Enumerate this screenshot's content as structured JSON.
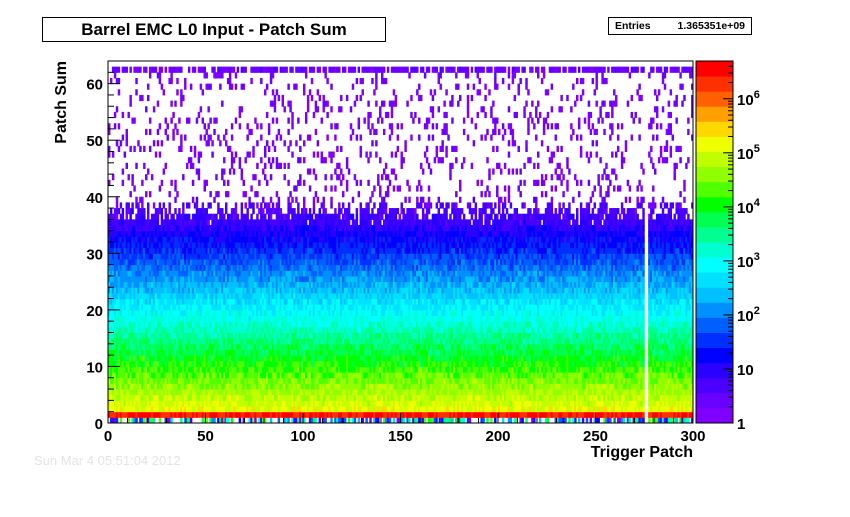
{
  "chart_data": {
    "type": "heatmap",
    "title": "Barrel EMC L0 Input - Patch Sum",
    "xlabel": "Trigger Patch",
    "ylabel": "Patch Sum",
    "xlim": [
      0,
      300
    ],
    "ylim": [
      0,
      64
    ],
    "x_ticks": [
      0,
      50,
      100,
      150,
      200,
      250,
      300
    ],
    "y_ticks": [
      0,
      10,
      20,
      30,
      40,
      50,
      60
    ],
    "z_scale": "log",
    "z_range": [
      1,
      5000000
    ],
    "colorbar_ticks": [
      {
        "value": 1,
        "label": "1"
      },
      {
        "value": 10,
        "label": "10"
      },
      {
        "value": 100,
        "label": "10",
        "exponent": "2"
      },
      {
        "value": 1000,
        "label": "10",
        "exponent": "3"
      },
      {
        "value": 10000,
        "label": "10",
        "exponent": "4"
      },
      {
        "value": 100000,
        "label": "10",
        "exponent": "5"
      },
      {
        "value": 1000000,
        "label": "10",
        "exponent": "6"
      }
    ],
    "palette": [
      "#8000ff",
      "#6a00ff",
      "#4b00ff",
      "#2a00ff",
      "#0000ff",
      "#0030ff",
      "#0060ff",
      "#0090ff",
      "#00c0ff",
      "#00e0ff",
      "#00ffff",
      "#00ffd0",
      "#00ff90",
      "#00ff50",
      "#00ff00",
      "#50ff00",
      "#90ff00",
      "#c0ff00",
      "#eeff00",
      "#ffd800",
      "#ffa000",
      "#ff6000",
      "#ff3000",
      "#ff0000"
    ],
    "stats": {
      "label": "Entries",
      "value": "1.365351e+09"
    },
    "empty_patches": [
      275,
      276
    ],
    "features": [
      {
        "description": "sum 1 band (pedestal) red across all patches",
        "patch_sum": 1,
        "counts": 3000000
      },
      {
        "description": "sum 0 row sparse, mixed colors",
        "patch_sum": 0
      },
      {
        "description": "saturation row at top",
        "patch_sum": 62
      }
    ]
  },
  "footer": {
    "text": "Sun Mar  4 05:51:04 2012"
  }
}
